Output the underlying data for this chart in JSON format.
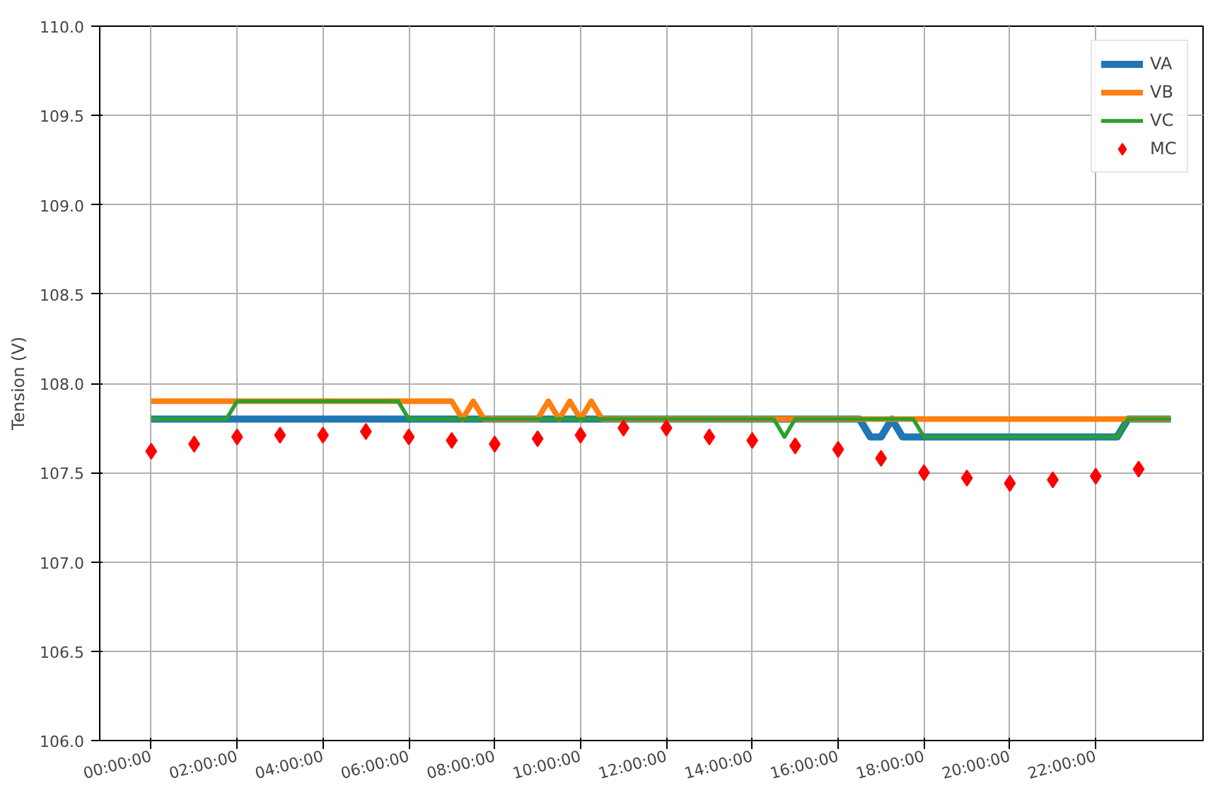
{
  "chart_data": {
    "type": "line",
    "ylabel": "Tension (V)",
    "xlim": [
      -1.2,
      24.5
    ],
    "ylim": [
      106.0,
      110.0
    ],
    "xticks": [
      {
        "value": 0,
        "label": "00:00:00"
      },
      {
        "value": 2,
        "label": "02:00:00"
      },
      {
        "value": 4,
        "label": "04:00:00"
      },
      {
        "value": 6,
        "label": "06:00:00"
      },
      {
        "value": 8,
        "label": "08:00:00"
      },
      {
        "value": 10,
        "label": "10:00:00"
      },
      {
        "value": 12,
        "label": "12:00:00"
      },
      {
        "value": 14,
        "label": "14:00:00"
      },
      {
        "value": 16,
        "label": "16:00:00"
      },
      {
        "value": 18,
        "label": "18:00:00"
      },
      {
        "value": 20,
        "label": "20:00:00"
      },
      {
        "value": 22,
        "label": "22:00:00"
      }
    ],
    "yticks": [
      {
        "value": 106.0,
        "label": "106.0"
      },
      106.5,
      {
        "value": 107.0,
        "label": "107.0"
      },
      107.5,
      {
        "value": 108.0,
        "label": "108.0"
      },
      108.5,
      {
        "value": 109.0,
        "label": "109.0"
      },
      109.5,
      {
        "value": 110.0,
        "label": "110.0"
      }
    ],
    "grid": true,
    "legend": "top right",
    "series": [
      {
        "name": "VA",
        "color": "#1f77b4",
        "marker": "none",
        "x": [
          0,
          16.5,
          16.75,
          17.0,
          17.25,
          17.5,
          22.5,
          22.75,
          23.75
        ],
        "values": [
          107.8,
          107.8,
          107.7,
          107.7,
          107.8,
          107.7,
          107.7,
          107.8,
          107.8
        ]
      },
      {
        "name": "VB",
        "color": "#ff7f0e",
        "marker": "none",
        "x": [
          0,
          7.0,
          7.25,
          7.5,
          7.75,
          9.0,
          9.25,
          9.5,
          9.75,
          10.0,
          10.25,
          10.5,
          23.75
        ],
        "values": [
          107.9,
          107.9,
          107.8,
          107.9,
          107.8,
          107.8,
          107.9,
          107.8,
          107.9,
          107.8,
          107.9,
          107.8,
          107.8
        ]
      },
      {
        "name": "VC",
        "color": "#2ca02c",
        "marker": "none",
        "x": [
          0,
          1.75,
          2.0,
          5.75,
          6.0,
          14.5,
          14.75,
          15.0,
          17.75,
          18.0,
          22.5,
          22.75,
          23.75
        ],
        "values": [
          107.8,
          107.8,
          107.9,
          107.9,
          107.8,
          107.8,
          107.7,
          107.8,
          107.8,
          107.7,
          107.7,
          107.8,
          107.8
        ]
      },
      {
        "name": "MC",
        "type": "scatter",
        "color": "#ff0000",
        "marker": "diamond",
        "x": [
          0,
          1,
          2,
          3,
          4,
          5,
          6,
          7,
          8,
          9,
          10,
          11,
          12,
          13,
          14,
          15,
          16,
          17,
          18,
          19,
          20,
          21,
          22,
          23
        ],
        "values": [
          107.62,
          107.66,
          107.7,
          107.71,
          107.71,
          107.73,
          107.7,
          107.68,
          107.66,
          107.69,
          107.71,
          107.75,
          107.75,
          107.7,
          107.68,
          107.65,
          107.63,
          107.58,
          107.5,
          107.47,
          107.44,
          107.46,
          107.48,
          107.52
        ]
      }
    ]
  }
}
